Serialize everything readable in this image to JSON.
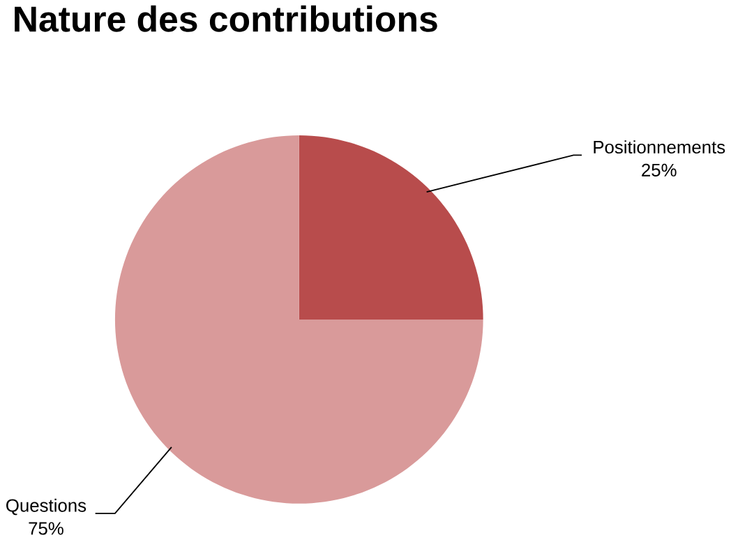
{
  "chart_data": {
    "type": "pie",
    "title": "Nature des contributions",
    "categories": [
      "Positionnements",
      "Questions"
    ],
    "values": [
      25,
      75
    ],
    "value_labels": [
      "25%",
      "75%"
    ],
    "colors": [
      "#b84c4c",
      "#d99a9a"
    ]
  }
}
